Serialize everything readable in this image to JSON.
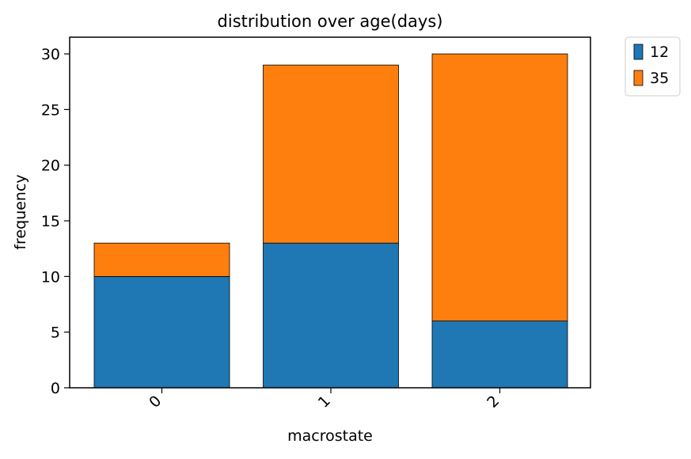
{
  "chart_data": {
    "type": "bar",
    "stacked": true,
    "title": "distribution over age(days)",
    "xlabel": "macrostate",
    "ylabel": "frequency",
    "categories": [
      "0",
      "1",
      "2"
    ],
    "series": [
      {
        "name": "12",
        "values": [
          10,
          13,
          6
        ],
        "color": "#1f77b4"
      },
      {
        "name": "35",
        "values": [
          3,
          16,
          24
        ],
        "color": "#ff7f0e"
      }
    ],
    "ylim": [
      0,
      31.5
    ],
    "yticks": [
      0,
      5,
      10,
      15,
      20,
      25,
      30
    ],
    "grid": false,
    "legend_position": "outside-top-right"
  }
}
